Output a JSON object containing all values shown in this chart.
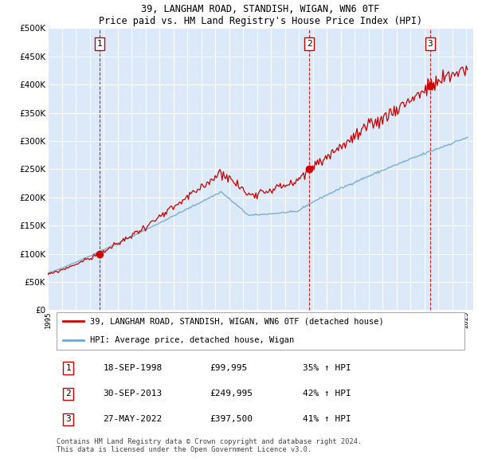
{
  "title": "39, LANGHAM ROAD, STANDISH, WIGAN, WN6 0TF",
  "subtitle": "Price paid vs. HM Land Registry's House Price Index (HPI)",
  "background_color": "#ffffff",
  "plot_bg_color": "#dce9f8",
  "hpi_line_color": "#6fa8d0",
  "price_line_color": "#cc0000",
  "sale_marker_color": "#cc0000",
  "vline_color": "#cc0000",
  "ylim": [
    0,
    500000
  ],
  "yticks": [
    0,
    50000,
    100000,
    150000,
    200000,
    250000,
    300000,
    350000,
    400000,
    450000,
    500000
  ],
  "sale_dates_dec": [
    1998.71,
    2013.75,
    2022.41
  ],
  "sale_prices": [
    99995,
    249995,
    397500
  ],
  "sale_labels": [
    "1",
    "2",
    "3"
  ],
  "legend_line1": "39, LANGHAM ROAD, STANDISH, WIGAN, WN6 0TF (detached house)",
  "legend_line2": "HPI: Average price, detached house, Wigan",
  "table_rows": [
    [
      "1",
      "18-SEP-1998",
      "£99,995",
      "35% ↑ HPI"
    ],
    [
      "2",
      "30-SEP-2013",
      "£249,995",
      "42% ↑ HPI"
    ],
    [
      "3",
      "27-MAY-2022",
      "£397,500",
      "41% ↑ HPI"
    ]
  ],
  "footer": "Contains HM Land Registry data © Crown copyright and database right 2024.\nThis data is licensed under the Open Government Licence v3.0."
}
